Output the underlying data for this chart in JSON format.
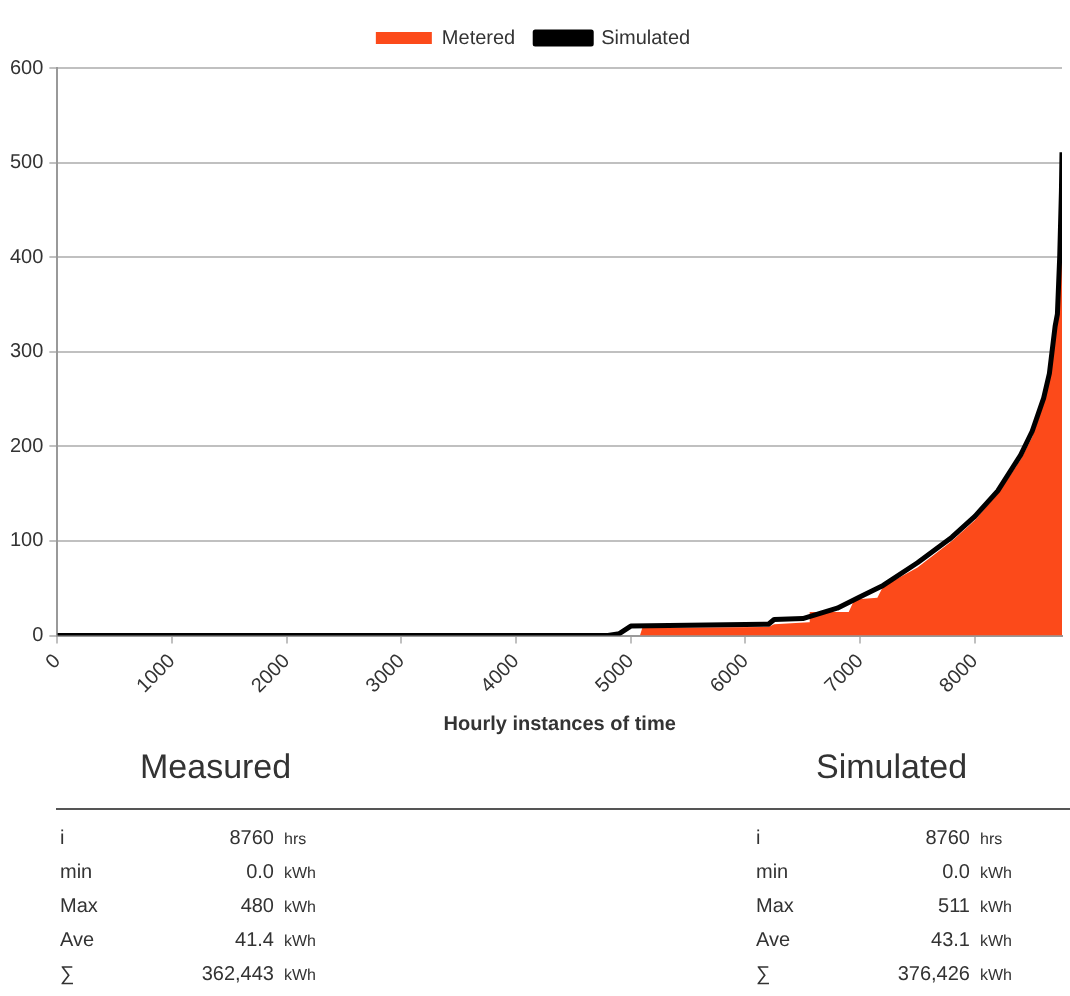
{
  "chart_data": {
    "type": "line",
    "xlabel": "Hourly instances of time",
    "xlim": [
      0,
      8760
    ],
    "xticks": [
      0,
      1000,
      2000,
      3000,
      4000,
      5000,
      6000,
      7000,
      8000
    ],
    "ylim": [
      0,
      600
    ],
    "yticks": [
      0,
      100,
      200,
      300,
      400,
      500,
      600
    ],
    "grid": "y",
    "legend": "top",
    "marker": "none",
    "line_style": "solid",
    "series": [
      {
        "name": "Metered",
        "type": "area",
        "color": "#fc4a1a",
        "x": [
          0,
          5080,
          5100,
          6200,
          6250,
          6550,
          6560,
          6900,
          6950,
          7150,
          7200,
          7500,
          7800,
          8000,
          8200,
          8400,
          8500,
          8600,
          8700,
          8740,
          8760
        ],
        "values": [
          0,
          0,
          8,
          9,
          12,
          14,
          25,
          25,
          38,
          40,
          52,
          72,
          100,
          122,
          150,
          186,
          210,
          245,
          320,
          400,
          480
        ]
      },
      {
        "name": "Simulated",
        "type": "line",
        "color": "#000000",
        "x": [
          0,
          4800,
          4900,
          5000,
          6200,
          6250,
          6500,
          6800,
          7000,
          7200,
          7500,
          7800,
          8000,
          8200,
          8400,
          8500,
          8600,
          8650,
          8700,
          8720,
          8740,
          8755,
          8760
        ],
        "values": [
          0,
          0,
          2,
          10,
          12,
          17,
          18,
          29,
          41,
          53,
          77,
          104,
          126,
          153,
          191,
          216,
          251,
          277,
          327,
          340,
          400,
          470,
          511
        ]
      }
    ],
    "annotations": [
      "Measured",
      "i",
      "8760",
      "hrs",
      "min",
      "0.0",
      "kWh",
      "Max",
      "480",
      "kWh",
      "Ave",
      "41.4",
      "kWh",
      "∑",
      "362,443",
      "kWh",
      "Simulated",
      "i",
      "8760",
      "hrs",
      "min",
      "0.0",
      "kWh",
      "Max",
      "511",
      "kWh",
      "Ave",
      "43.1",
      "kWh",
      "∑",
      "376,426",
      "kWh"
    ]
  }
}
